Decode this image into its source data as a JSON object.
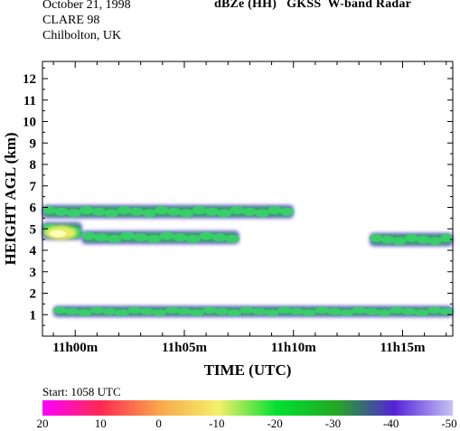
{
  "header": {
    "date": "October 21, 1998",
    "campaign": "CLARE 98",
    "location": "Chilbolton, UK",
    "title": "dBZe (HH)   GKSS  W-band Radar"
  },
  "colorbar": {
    "start_label": "Start: 1058 UTC",
    "ticks": [
      "20",
      "10",
      "0",
      "-10",
      "-20",
      "-30",
      "-40",
      "-50"
    ],
    "colors": [
      "#ff00ff",
      "#ff2a50",
      "#f7a84a",
      "#f5f06a",
      "#00e030",
      "#22aa22",
      "#5522d8",
      "#c4c4f4"
    ]
  },
  "chart_data": {
    "type": "heatmap",
    "title": "dBZe (HH)   GKSS  W-band Radar",
    "xlabel": "TIME (UTC)",
    "ylabel": "HEIGHT AGL (km)",
    "x_ticks": [
      "11h00m",
      "11h05m",
      "11h10m",
      "11h15m"
    ],
    "x_range_min": [
      58.5,
      77.3
    ],
    "y_ticks": [
      1,
      2,
      3,
      4,
      5,
      6,
      7,
      8,
      9,
      10,
      11,
      12
    ],
    "ylim": [
      0,
      12.8
    ],
    "value_range_dbz": [
      20,
      -50
    ],
    "echo_layers": [
      {
        "t_start_min": 58.5,
        "t_end_min": 70.0,
        "base_km": 5.5,
        "top_km": 6.1
      },
      {
        "t_start_min": 58.5,
        "t_end_min": 60.3,
        "base_km": 4.5,
        "top_km": 5.3
      },
      {
        "t_start_min": 60.3,
        "t_end_min": 67.5,
        "base_km": 4.3,
        "top_km": 4.9
      },
      {
        "t_start_min": 73.5,
        "t_end_min": 77.3,
        "base_km": 4.2,
        "top_km": 4.8
      },
      {
        "t_start_min": 59.0,
        "t_end_min": 77.3,
        "base_km": 0.9,
        "top_km": 1.4
      }
    ]
  }
}
